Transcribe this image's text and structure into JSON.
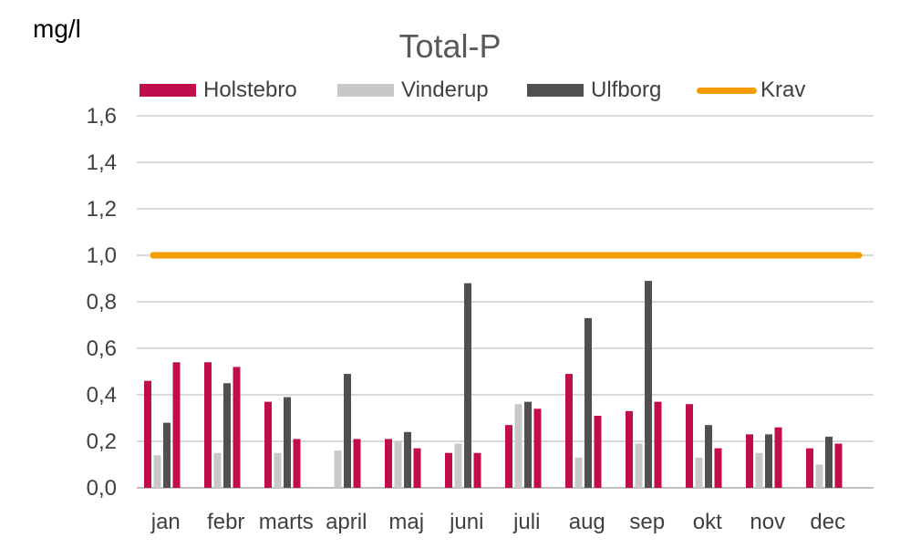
{
  "unit_label": "mg/l",
  "chart_data": {
    "type": "bar",
    "title": "Total-P",
    "xlabel": "",
    "ylabel": "mg/l",
    "categories": [
      "jan",
      "febr",
      "marts",
      "april",
      "maj",
      "juni",
      "juli",
      "aug",
      "sep",
      "okt",
      "nov",
      "dec"
    ],
    "y_ticks": [
      "0,0",
      "0,2",
      "0,4",
      "0,6",
      "0,8",
      "1,0",
      "1,2",
      "1,4",
      "1,6"
    ],
    "ylim": [
      0,
      1.6
    ],
    "grid": true,
    "legend_position": "top",
    "series": [
      {
        "name": "Holstebro",
        "color": "#C00D4E",
        "values": [
          0.46,
          0.54,
          0.37,
          null,
          0.21,
          0.15,
          0.27,
          0.49,
          0.33,
          0.36,
          0.23,
          0.17
        ]
      },
      {
        "name": "Vinderup",
        "color": "#C8C8C8",
        "values": [
          0.14,
          0.15,
          0.15,
          0.16,
          0.2,
          0.19,
          0.36,
          0.13,
          0.19,
          0.13,
          0.15,
          0.1
        ]
      },
      {
        "name": "Ulfborg",
        "color": "#505050",
        "values": [
          0.28,
          0.45,
          0.39,
          0.49,
          0.24,
          0.88,
          0.37,
          0.73,
          0.89,
          0.27,
          0.23,
          0.22
        ]
      },
      {
        "name": "Holstebro",
        "color": "#C00D4E",
        "in_legend": false,
        "values": [
          0.54,
          0.52,
          0.21,
          0.21,
          0.17,
          0.15,
          0.34,
          0.31,
          0.37,
          0.17,
          0.26,
          0.19
        ]
      }
    ],
    "reference_line": {
      "name": "Krav",
      "value": 1.0,
      "color": "#F59D00"
    }
  }
}
